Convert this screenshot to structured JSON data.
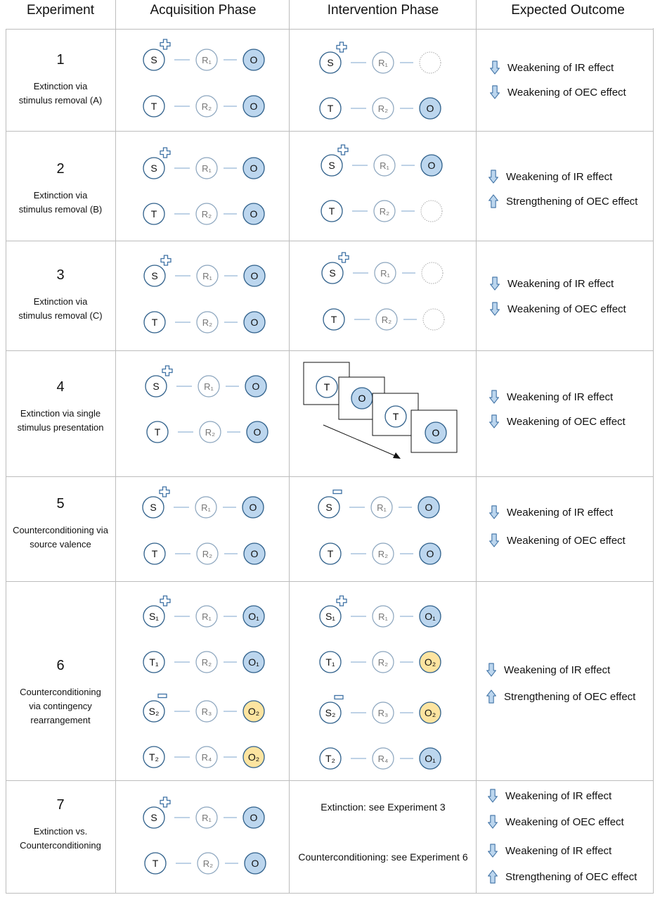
{
  "headers": {
    "experiment": "Experiment",
    "acquisition": "Acquisition Phase",
    "intervention": "Intervention Phase",
    "outcome": "Expected Outcome"
  },
  "colors": {
    "grid": "#bdbdbd",
    "node_stroke": "#2e5f8a",
    "response_stroke": "#8aa4bd",
    "link": "#7ea6cc",
    "outcome_blue": "#bcd6ee",
    "outcome_yellow": "#fde4a0",
    "arrow_fill": "#bcd6ee",
    "arrow_stroke": "#3f72a5"
  },
  "labels": {
    "stimulus_s": "S",
    "stimulus_t": "T",
    "outcome": "O",
    "plus_sign": "+",
    "minus_sign": "−",
    "r1": "R₁",
    "r2": "R₂",
    "r3": "R₃",
    "r4": "R₄",
    "s1": "S₁",
    "s2": "S₂",
    "t1": "T₁",
    "t2": "T₂",
    "o1": "O₁",
    "o2": "O₂"
  },
  "outcomes": {
    "weak_ir": "Weakening of IR effect",
    "weak_oec": "Weakening of OEC effect",
    "strong_oec": "Strengthening of OEC effect"
  },
  "experiments": [
    {
      "number": "1",
      "description_lines": [
        "Extinction via",
        "stimulus removal (A)"
      ]
    },
    {
      "number": "2",
      "description_lines": [
        "Extinction via",
        "stimulus removal (B)"
      ]
    },
    {
      "number": "3",
      "description_lines": [
        "Extinction via",
        "stimulus removal (C)"
      ]
    },
    {
      "number": "4",
      "description_lines": [
        "Extinction via single",
        "stimulus presentation"
      ]
    },
    {
      "number": "5",
      "description_lines": [
        "Counterconditioning via",
        "source valence"
      ]
    },
    {
      "number": "6",
      "description_lines": [
        "Counterconditioning",
        "via contingency",
        "rearrangement"
      ]
    },
    {
      "number": "7",
      "description_lines": [
        "Extinction vs.",
        "Counterconditioning"
      ]
    }
  ],
  "exp7_notes": {
    "extinction": "Extinction: see Experiment 3",
    "counterconditioning": "Counterconditioning: see Experiment 6"
  }
}
